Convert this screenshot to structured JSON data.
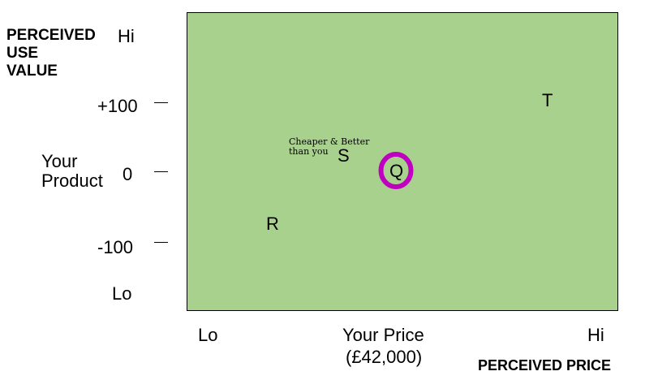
{
  "y_axis": {
    "title_lines": [
      "PERCEIVED",
      "USE",
      "VALUE"
    ],
    "hi": "Hi",
    "lo": "Lo",
    "ticks": [
      "+100",
      "0",
      "-100"
    ],
    "reference_label_line1": "Your",
    "reference_label_line2": "Product"
  },
  "x_axis": {
    "lo": "Lo",
    "hi": "Hi",
    "reference_label_line1": "Your Price",
    "reference_label_line2": "(£42,000)",
    "title": "PERCEIVED PRICE"
  },
  "plot": {
    "background": "#a9d18e",
    "points": [
      {
        "label": "T"
      },
      {
        "label": "S"
      },
      {
        "label": "Q",
        "highlight_color": "#c000c0"
      },
      {
        "label": "R"
      }
    ],
    "annotation": "Cheaper & Better\nthan you"
  }
}
